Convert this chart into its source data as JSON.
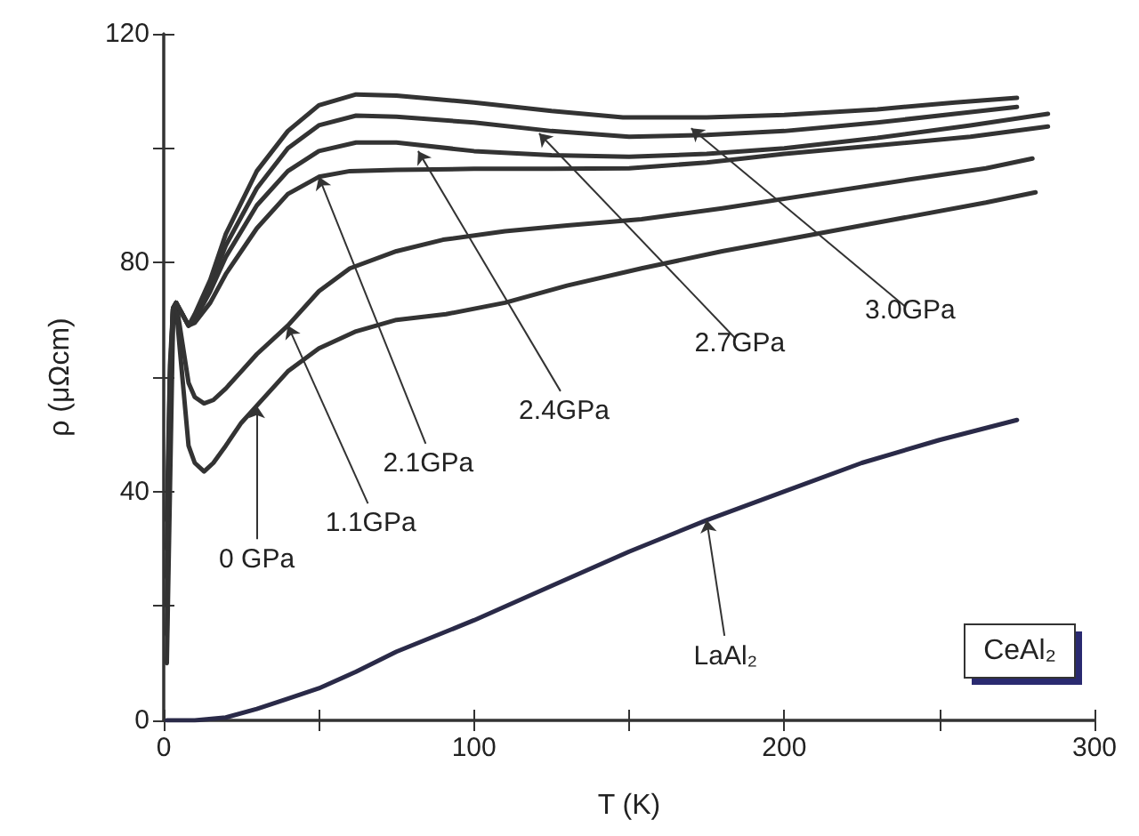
{
  "chart_data": {
    "type": "line",
    "xlabel": "T (K)",
    "ylabel": "ρ (μΩcm)",
    "xlim": [
      0,
      300
    ],
    "xticks": [
      0,
      {
        "value": 50,
        "label": null
      },
      100,
      {
        "value": 150,
        "label": null
      },
      200,
      {
        "value": 250,
        "label": null
      },
      300
    ],
    "ylim": [
      0,
      120
    ],
    "yticks": [
      0,
      {
        "value": 20,
        "label": null
      },
      40,
      {
        "value": 60,
        "label": null
      },
      80,
      {
        "value": 100,
        "label": null
      },
      120
    ],
    "grid": false,
    "marker": "none",
    "line_style": "solid",
    "series": [
      {
        "color": "#333333",
        "x": [
          1,
          2,
          3,
          4,
          6,
          8,
          10,
          13,
          16,
          20,
          25,
          30,
          40,
          50,
          62,
          75,
          91,
          110,
          130,
          154,
          180,
          210,
          240,
          265,
          281
        ],
        "values": [
          10,
          40,
          70,
          72,
          60,
          48,
          45,
          43.5,
          45,
          48,
          52,
          55,
          61,
          65,
          68,
          70,
          71,
          73,
          76,
          79,
          82,
          85,
          88,
          90.5,
          92.3
        ]
      },
      {
        "color": "#333333",
        "x": [
          1,
          2,
          3,
          4,
          6,
          8,
          10,
          13,
          16,
          20,
          25,
          30,
          40,
          50,
          60,
          75,
          90,
          110,
          130,
          154,
          180,
          210,
          240,
          265,
          280
        ],
        "values": [
          15,
          50,
          72,
          73,
          66,
          59,
          56.5,
          55.4,
          56,
          58,
          61,
          64,
          69,
          75,
          79,
          82,
          84,
          85.5,
          86.5,
          87.6,
          89.5,
          92,
          94.5,
          96.5,
          98.2
        ]
      },
      {
        "color": "#333333",
        "x": [
          1,
          2,
          3,
          4,
          6,
          8,
          10,
          15,
          20,
          30,
          40,
          50,
          60,
          75,
          100,
          125,
          150,
          175,
          200,
          230,
          260,
          285
        ],
        "values": [
          20,
          55,
          72,
          73,
          71,
          69,
          69.5,
          73,
          78,
          86,
          92,
          95,
          96,
          96.2,
          96.4,
          96.4,
          96.5,
          97.5,
          99,
          100.5,
          102,
          103.8
        ]
      },
      {
        "color": "#333333",
        "x": [
          1,
          2,
          3,
          4,
          6,
          8,
          10,
          15,
          20,
          30,
          40,
          50,
          62,
          75,
          100,
          125,
          150,
          175,
          200,
          230,
          260,
          285
        ],
        "values": [
          25,
          58,
          72,
          73,
          71,
          69,
          70,
          75,
          81,
          90,
          96,
          99.5,
          101,
          101,
          99.5,
          98.8,
          98.5,
          99,
          100,
          101.8,
          104,
          106
        ]
      },
      {
        "color": "#333333",
        "x": [
          1,
          2,
          3,
          4,
          6,
          8,
          10,
          15,
          20,
          30,
          40,
          50,
          62,
          75,
          100,
          125,
          150,
          175,
          200,
          230,
          255,
          275
        ],
        "values": [
          30,
          60,
          72,
          73,
          71,
          69,
          70.5,
          76,
          83,
          93,
          100,
          104,
          105.7,
          105.5,
          104.5,
          103,
          102,
          102.3,
          103,
          104.5,
          106,
          107.2
        ]
      },
      {
        "color": "#333333",
        "x": [
          1,
          2,
          3,
          4,
          6,
          8,
          10,
          15,
          20,
          30,
          40,
          50,
          62,
          75,
          100,
          125,
          148,
          175,
          200,
          230,
          255,
          275
        ],
        "values": [
          35,
          62,
          72,
          73,
          71,
          69,
          71,
          77,
          85,
          96,
          103,
          107.5,
          109.4,
          109.2,
          108,
          106.5,
          105.4,
          105.4,
          105.8,
          106.8,
          108,
          108.8
        ]
      },
      {
        "color": "#2a2a48",
        "x": [
          1,
          10,
          20,
          30,
          40,
          50,
          62,
          75,
          100,
          125,
          150,
          175,
          200,
          225,
          250,
          275
        ],
        "values": [
          0,
          0,
          0.5,
          2,
          3.8,
          5.6,
          8.5,
          12,
          17.5,
          23.5,
          29.5,
          35,
          40,
          45,
          49,
          52.5
        ]
      }
    ],
    "annotations": [
      {
        "text": "0 GPa",
        "x": 30,
        "y": 55
      },
      {
        "text": "1.1GPa",
        "x": 40,
        "y": 69
      },
      {
        "text": "2.1GPa",
        "x": 50,
        "y": 95
      },
      {
        "text": "2.4GPa",
        "x": 82,
        "y": 99.5
      },
      {
        "text": "2.7GPa",
        "x": 121,
        "y": 102.6
      },
      {
        "text": "3.0GPa",
        "x": 170,
        "y": 103.5
      },
      {
        "text": "LaAl₂",
        "x": 175,
        "y": 35
      },
      "CeAl₂"
    ]
  }
}
